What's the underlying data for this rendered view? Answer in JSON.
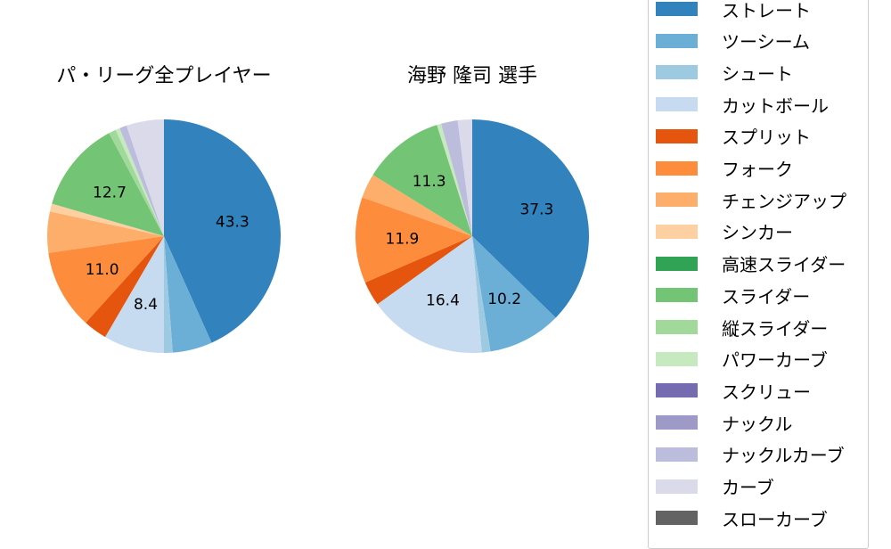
{
  "chart_data": [
    {
      "type": "pie",
      "title": "パ・リーグ全プレイヤー",
      "slices": [
        {
          "label": "ストレート",
          "value": 43.3,
          "color": "#3182bd",
          "show_label": true
        },
        {
          "label": "ツーシーム",
          "value": 5.5,
          "color": "#6baed6",
          "show_label": false
        },
        {
          "label": "シュート",
          "value": 1.2,
          "color": "#9ecae1",
          "show_label": false
        },
        {
          "label": "カットボール",
          "value": 8.4,
          "color": "#c6dbef",
          "show_label": true
        },
        {
          "label": "スプリット",
          "value": 3.3,
          "color": "#e6550d",
          "show_label": false
        },
        {
          "label": "フォーク",
          "value": 11.0,
          "color": "#fd8d3c",
          "show_label": true
        },
        {
          "label": "チェンジアップ",
          "value": 5.7,
          "color": "#fdae6b",
          "show_label": false
        },
        {
          "label": "シンカー",
          "value": 1.1,
          "color": "#fdd0a2",
          "show_label": false
        },
        {
          "label": "高速スライダー",
          "value": 0.0,
          "color": "#31a354",
          "show_label": false
        },
        {
          "label": "スライダー",
          "value": 12.7,
          "color": "#74c476",
          "show_label": true
        },
        {
          "label": "縦スライダー",
          "value": 1.0,
          "color": "#a1d99b",
          "show_label": false
        },
        {
          "label": "パワーカーブ",
          "value": 0.6,
          "color": "#c7e9c0",
          "show_label": false
        },
        {
          "label": "スクリュー",
          "value": 0.0,
          "color": "#756bb1",
          "show_label": false
        },
        {
          "label": "ナックル",
          "value": 0.0,
          "color": "#9e9ac8",
          "show_label": false
        },
        {
          "label": "ナックルカーブ",
          "value": 1.0,
          "color": "#bcbddc",
          "show_label": false
        },
        {
          "label": "カーブ",
          "value": 5.2,
          "color": "#dadaeb",
          "show_label": false
        },
        {
          "label": "スローカーブ",
          "value": 0.0,
          "color": "#636363",
          "show_label": false
        }
      ]
    },
    {
      "type": "pie",
      "title": "海野 隆司  選手",
      "slices": [
        {
          "label": "ストレート",
          "value": 37.3,
          "color": "#3182bd",
          "show_label": true
        },
        {
          "label": "ツーシーム",
          "value": 10.2,
          "color": "#6baed6",
          "show_label": true
        },
        {
          "label": "シュート",
          "value": 1.2,
          "color": "#9ecae1",
          "show_label": false
        },
        {
          "label": "カットボール",
          "value": 16.4,
          "color": "#c6dbef",
          "show_label": true
        },
        {
          "label": "スプリット",
          "value": 3.4,
          "color": "#e6550d",
          "show_label": false
        },
        {
          "label": "フォーク",
          "value": 11.9,
          "color": "#fd8d3c",
          "show_label": true
        },
        {
          "label": "チェンジアップ",
          "value": 3.4,
          "color": "#fdae6b",
          "show_label": false
        },
        {
          "label": "シンカー",
          "value": 0.0,
          "color": "#fdd0a2",
          "show_label": false
        },
        {
          "label": "高速スライダー",
          "value": 0.0,
          "color": "#31a354",
          "show_label": false
        },
        {
          "label": "スライダー",
          "value": 11.3,
          "color": "#74c476",
          "show_label": true
        },
        {
          "label": "縦スライダー",
          "value": 0.0,
          "color": "#a1d99b",
          "show_label": false
        },
        {
          "label": "パワーカーブ",
          "value": 0.6,
          "color": "#c7e9c0",
          "show_label": false
        },
        {
          "label": "スクリュー",
          "value": 0.0,
          "color": "#756bb1",
          "show_label": false
        },
        {
          "label": "ナックル",
          "value": 0.0,
          "color": "#9e9ac8",
          "show_label": false
        },
        {
          "label": "ナックルカーブ",
          "value": 2.3,
          "color": "#bcbddc",
          "show_label": false
        },
        {
          "label": "カーブ",
          "value": 2.0,
          "color": "#dadaeb",
          "show_label": false
        },
        {
          "label": "スローカーブ",
          "value": 0.0,
          "color": "#636363",
          "show_label": false
        }
      ]
    }
  ],
  "legend": {
    "placement": "right",
    "items": [
      {
        "label": "ストレート",
        "color": "#3182bd"
      },
      {
        "label": "ツーシーム",
        "color": "#6baed6"
      },
      {
        "label": "シュート",
        "color": "#9ecae1"
      },
      {
        "label": "カットボール",
        "color": "#c6dbef"
      },
      {
        "label": "スプリット",
        "color": "#e6550d"
      },
      {
        "label": "フォーク",
        "color": "#fd8d3c"
      },
      {
        "label": "チェンジアップ",
        "color": "#fdae6b"
      },
      {
        "label": "シンカー",
        "color": "#fdd0a2"
      },
      {
        "label": "高速スライダー",
        "color": "#31a354"
      },
      {
        "label": "スライダー",
        "color": "#74c476"
      },
      {
        "label": "縦スライダー",
        "color": "#a1d99b"
      },
      {
        "label": "パワーカーブ",
        "color": "#c7e9c0"
      },
      {
        "label": "スクリュー",
        "color": "#756bb1"
      },
      {
        "label": "ナックル",
        "color": "#9e9ac8"
      },
      {
        "label": "ナックルカーブ",
        "color": "#bcbddc"
      },
      {
        "label": "カーブ",
        "color": "#dadaeb"
      },
      {
        "label": "スローカーブ",
        "color": "#636363"
      }
    ]
  }
}
